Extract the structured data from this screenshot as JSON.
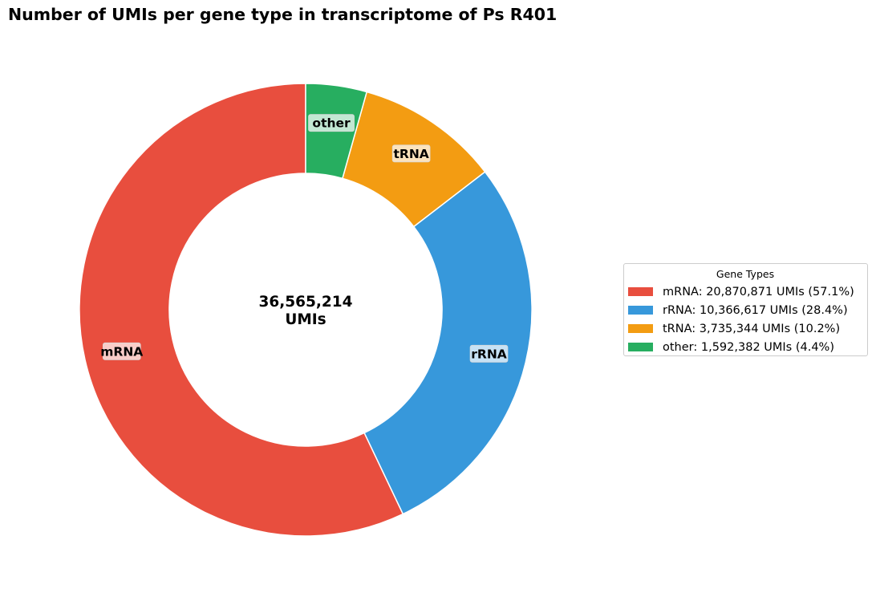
{
  "chart_data": {
    "type": "pie",
    "variant": "donut",
    "title": "Number of UMIs per gene type in transcriptome of Ps R401",
    "center_label": {
      "value": "36,565,214",
      "unit": "UMIs"
    },
    "total": 36565214,
    "slices": [
      {
        "category": "mRNA",
        "value": 20870871,
        "percent": 57.1,
        "color": "#e84e3e",
        "legend": "mRNA: 20,870,871 UMIs (57.1%)"
      },
      {
        "category": "rRNA",
        "value": 10366617,
        "percent": 28.4,
        "color": "#3798db",
        "legend": "rRNA: 10,366,617 UMIs (28.4%)"
      },
      {
        "category": "tRNA",
        "value": 3735344,
        "percent": 10.2,
        "color": "#f39c12",
        "legend": "tRNA: 3,735,344 UMIs (10.2%)"
      },
      {
        "category": "other",
        "value": 1592382,
        "percent": 4.4,
        "color": "#27ae60",
        "legend": "other: 1,592,382 UMIs (4.4%)"
      }
    ],
    "start_angle": "top",
    "direction": "counterclockwise",
    "legend": {
      "title": "Gene Types",
      "placement": "right"
    }
  }
}
